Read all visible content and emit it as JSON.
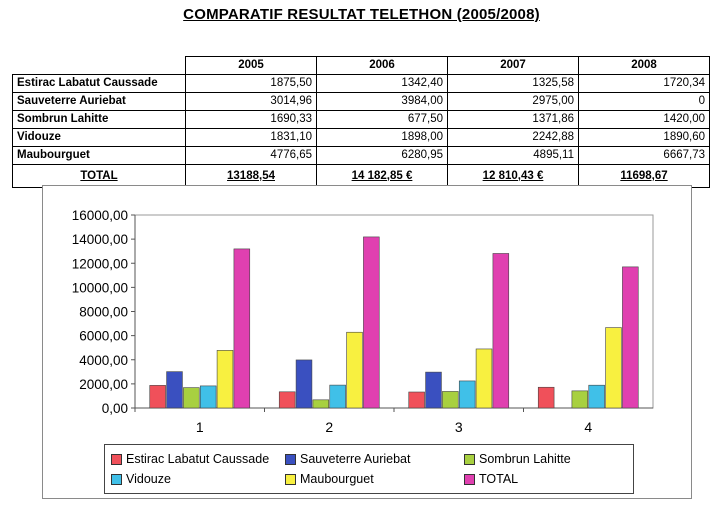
{
  "page": {
    "title": "COMPARATIF RESULTAT TELETHON (2005/2008)"
  },
  "table": {
    "columns": [
      "2005",
      "2006",
      "2007",
      "2008"
    ],
    "rows": [
      {
        "name": "Estirac Labatut Caussade",
        "values": [
          "1875,50",
          "1342,40",
          "1325,58",
          "1720,34"
        ]
      },
      {
        "name": "Sauveterre Auriebat",
        "values": [
          "3014,96",
          "3984,00",
          "2975,00",
          "0"
        ]
      },
      {
        "name": "Sombrun Lahitte",
        "values": [
          "1690,33",
          "677,50",
          "1371,86",
          "1420,00"
        ]
      },
      {
        "name": "Vidouze",
        "values": [
          "1831,10",
          "1898,00",
          "2242,88",
          "1890,60"
        ]
      },
      {
        "name": "Maubourguet",
        "values": [
          "4776,65",
          "6280,95",
          "4895,11",
          "6667,73"
        ]
      }
    ],
    "total": {
      "name": "TOTAL",
      "values": [
        "13188,54",
        "14 182,85 €",
        "12 810,43 €",
        "11698,67"
      ]
    }
  },
  "chart_data": {
    "type": "bar",
    "categories": [
      "1",
      "2",
      "3",
      "4"
    ],
    "ylim": [
      0,
      16000
    ],
    "yticks": [
      "0,00",
      "2000,00",
      "4000,00",
      "6000,00",
      "8000,00",
      "10000,00",
      "12000,00",
      "14000,00",
      "16000,00"
    ],
    "grid": false,
    "legend_position": "bottom",
    "series": [
      {
        "name": "Estirac Labatut Caussade",
        "color": "#f0505a",
        "values": [
          1875.5,
          1342.4,
          1325.58,
          1720.34
        ]
      },
      {
        "name": "Sauveterre Auriebat",
        "color": "#3a50c0",
        "values": [
          3014.96,
          3984.0,
          2975.0,
          0
        ]
      },
      {
        "name": "Sombrun Lahitte",
        "color": "#a8d040",
        "values": [
          1690.33,
          677.5,
          1371.86,
          1420.0
        ]
      },
      {
        "name": "Vidouze",
        "color": "#40c0e8",
        "values": [
          1831.1,
          1898.0,
          2242.88,
          1890.6
        ]
      },
      {
        "name": "Maubourguet",
        "color": "#f8f040",
        "values": [
          4776.65,
          6280.95,
          4895.11,
          6667.73
        ]
      },
      {
        "name": "TOTAL",
        "color": "#e040b0",
        "values": [
          13188.54,
          14182.85,
          12810.43,
          11698.67
        ]
      }
    ]
  }
}
